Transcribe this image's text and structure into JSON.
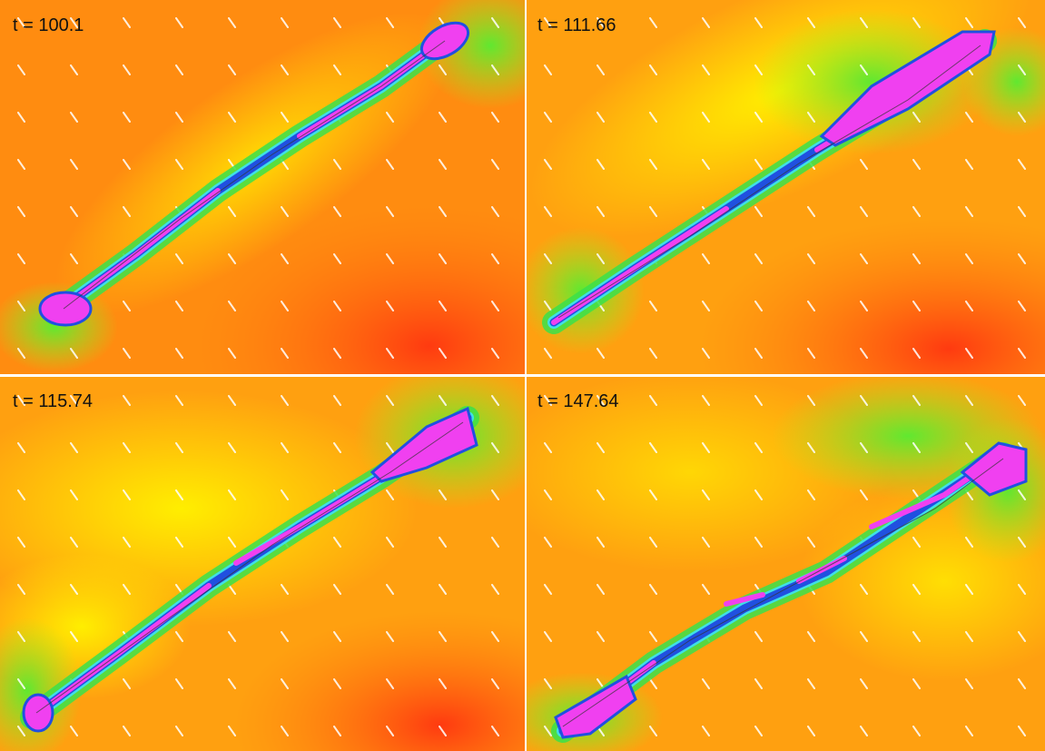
{
  "panels": [
    {
      "label": "t = 100.1"
    },
    {
      "label": "t = 111.66"
    },
    {
      "label": "t = 115.74"
    },
    {
      "label": "t = 147.64"
    }
  ]
}
